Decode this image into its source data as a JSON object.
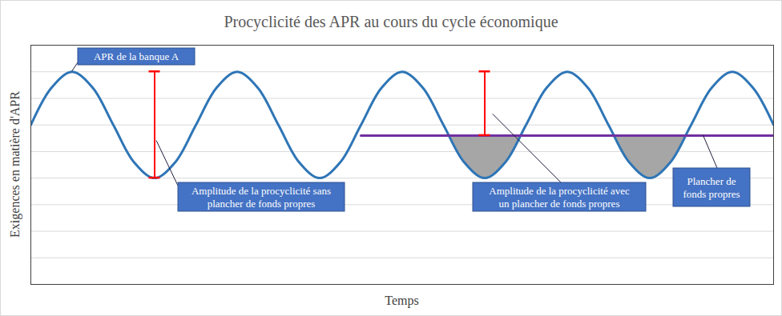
{
  "chart_data": {
    "type": "line",
    "title": "Procyclicité des APR au cours du cycle économique",
    "x_label": "Temps",
    "y_label": "Exigences en matière d'APR",
    "x": [
      0,
      0.5,
      1,
      1.5,
      2,
      2.5,
      3,
      3.5,
      4,
      4.5,
      5,
      5.5,
      6,
      6.5,
      7,
      7.5,
      8,
      8.5,
      9,
      9.5,
      10,
      10.5,
      11,
      11.5,
      12,
      12.5,
      13,
      13.5,
      14,
      14.5,
      15,
      15.5,
      16,
      16.5,
      17,
      17.5,
      18
    ],
    "series": [
      {
        "name": "APR de la banque A",
        "color": "#2e75b6",
        "values": [
          6,
          7.4,
          8,
          7.4,
          6,
          4.6,
          4,
          4.6,
          6,
          7.4,
          8,
          7.4,
          6,
          4.6,
          4,
          4.6,
          6,
          7.4,
          8,
          7.4,
          6,
          4.6,
          4,
          4.6,
          6,
          7.4,
          8,
          7.4,
          6,
          4.6,
          4,
          4.6,
          6,
          7.4,
          8,
          7.4,
          6
        ]
      },
      {
        "name": "Plancher de fonds propres",
        "color": "#7030a0",
        "values": [
          null,
          null,
          null,
          null,
          null,
          null,
          null,
          null,
          null,
          null,
          null,
          null,
          null,
          null,
          null,
          null,
          5.6,
          5.6,
          5.6,
          5.6,
          5.6,
          5.6,
          5.6,
          5.6,
          5.6,
          5.6,
          5.6,
          5.6,
          5.6,
          5.6,
          5.6,
          5.6,
          5.6,
          5.6,
          5.6,
          5.6,
          5.6
        ]
      }
    ],
    "amplitude_markers": [
      {
        "x": 3,
        "y1": 4,
        "y2": 8
      },
      {
        "x": 11,
        "y1": 5.6,
        "y2": 8
      }
    ],
    "annotations": [
      {
        "text": "APR de la banque A",
        "target": [
          1,
          8
        ]
      },
      {
        "text": "Amplitude de la procyclicité sans plancher de fonds propres",
        "target": [
          3.05,
          5.4
        ]
      },
      {
        "text": "Amplitude de la procyclicité avec un plancher de fonds propres",
        "target": [
          11.2,
          6.4
        ]
      },
      {
        "text": "Plancher de fonds propres",
        "target": [
          16.3,
          5.6
        ]
      }
    ],
    "xlim": [
      0,
      18
    ],
    "ylim": [
      0,
      9
    ],
    "yticks": [
      0,
      1,
      2,
      3,
      4,
      5,
      6,
      7,
      8,
      9
    ],
    "grid": true,
    "tick_labels": false
  }
}
